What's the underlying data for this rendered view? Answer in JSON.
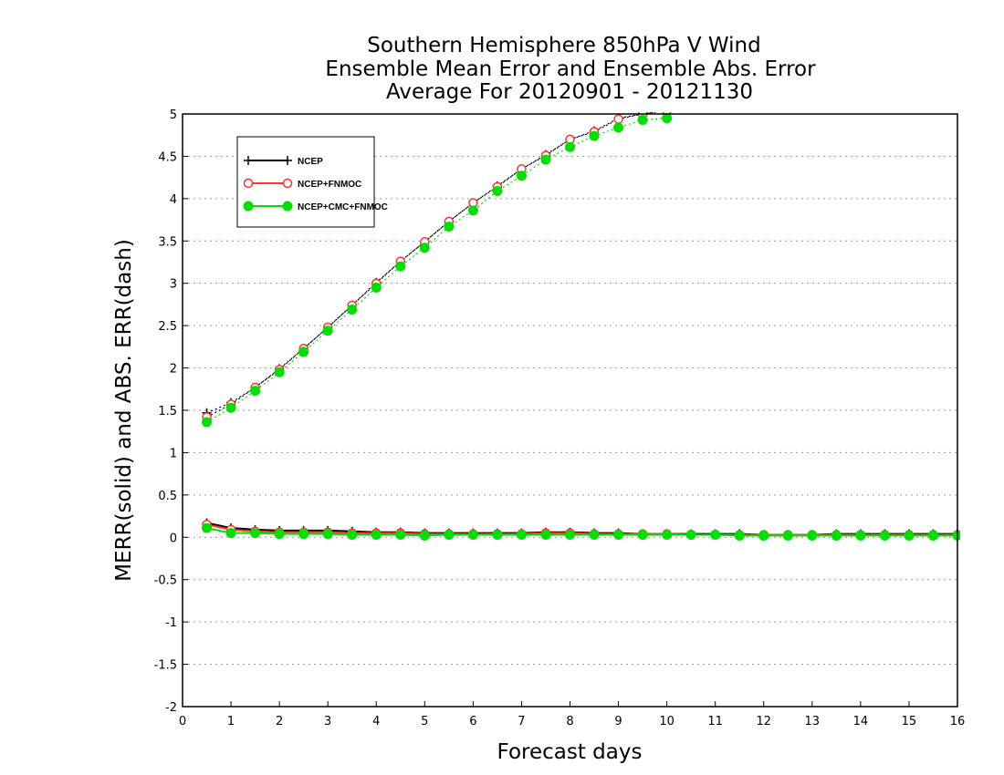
{
  "chart_data": {
    "type": "line",
    "title_lines": [
      "Southern Hemisphere 850hPa V Wind",
      "Ensemble Mean Error and Ensemble Abs. Error",
      "Average For 20120901 - 20121130"
    ],
    "xlabel": "Forecast days",
    "ylabel": "MERR(solid) and ABS. ERR(dash)",
    "xlim": [
      0,
      16
    ],
    "ylim": [
      -2,
      5
    ],
    "x_ticks": [
      "0",
      "1",
      "2",
      "3",
      "4",
      "5",
      "6",
      "7",
      "8",
      "9",
      "10",
      "11",
      "12",
      "13",
      "14",
      "15",
      "16"
    ],
    "y_ticks": [
      "-2",
      "-1.5",
      "-1",
      "-0.5",
      "0",
      "0.5",
      "1",
      "1.5",
      "2",
      "2.5",
      "3",
      "3.5",
      "4",
      "4.5",
      "5"
    ],
    "grid": "horizontal dotted",
    "legend_position": "top-left",
    "x": [
      0.5,
      1,
      1.5,
      2,
      2.5,
      3,
      3.5,
      4,
      4.5,
      5,
      5.5,
      6,
      6.5,
      7,
      7.5,
      8,
      8.5,
      9,
      9.5,
      10,
      10.5,
      11,
      11.5,
      12,
      12.5,
      13,
      13.5,
      14,
      14.5,
      15,
      15.5,
      16
    ],
    "series": [
      {
        "name": "NCEP",
        "color": "#000000",
        "marker": "plus",
        "mean_error": [
          0.17,
          0.11,
          0.09,
          0.08,
          0.08,
          0.08,
          0.07,
          0.06,
          0.06,
          0.05,
          0.05,
          0.05,
          0.05,
          0.05,
          0.06,
          0.06,
          0.05,
          0.05,
          0.04,
          0.04,
          0.04,
          0.04,
          0.04,
          0.03,
          0.03,
          0.03,
          0.04,
          0.04,
          0.04,
          0.04,
          0.04,
          0.04
        ],
        "abs_error": [
          1.47,
          1.59,
          1.77,
          1.99,
          2.23,
          2.48,
          2.74,
          3.01,
          3.26,
          3.49,
          3.73,
          3.95,
          4.15,
          4.35,
          4.52,
          4.7,
          4.8,
          4.95,
          5.0,
          5.05,
          null,
          null,
          null,
          null,
          null,
          null,
          null,
          null,
          null,
          null,
          null,
          null
        ]
      },
      {
        "name": "NCEP+FNMOC",
        "color": "#ff3333",
        "marker": "circle-open",
        "mean_error": [
          0.15,
          0.09,
          0.07,
          0.06,
          0.06,
          0.06,
          0.05,
          0.05,
          0.05,
          0.04,
          0.04,
          0.04,
          0.04,
          0.04,
          0.05,
          0.05,
          0.04,
          0.04,
          0.04,
          0.04,
          0.03,
          0.03,
          0.03,
          0.03,
          0.03,
          0.03,
          0.03,
          0.03,
          0.03,
          0.03,
          0.03,
          0.03
        ],
        "abs_error": [
          1.42,
          1.57,
          1.77,
          1.98,
          2.23,
          2.48,
          2.74,
          3.0,
          3.26,
          3.49,
          3.73,
          3.95,
          4.14,
          4.35,
          4.51,
          4.7,
          4.79,
          4.94,
          5.0,
          5.04,
          null,
          null,
          null,
          null,
          null,
          null,
          null,
          null,
          null,
          null,
          null,
          null
        ]
      },
      {
        "name": "NCEP+CMC+FNMOC",
        "color": "#00e000",
        "marker": "circle-filled",
        "mean_error": [
          0.11,
          0.05,
          0.05,
          0.04,
          0.04,
          0.04,
          0.03,
          0.03,
          0.03,
          0.02,
          0.03,
          0.03,
          0.03,
          0.03,
          0.03,
          0.03,
          0.03,
          0.03,
          0.03,
          0.03,
          0.03,
          0.03,
          0.02,
          0.02,
          0.02,
          0.02,
          0.02,
          0.02,
          0.02,
          0.02,
          0.02,
          0.02
        ],
        "abs_error": [
          1.36,
          1.53,
          1.73,
          1.95,
          2.19,
          2.44,
          2.69,
          2.95,
          3.2,
          3.42,
          3.67,
          3.86,
          4.09,
          4.27,
          4.46,
          4.61,
          4.74,
          4.84,
          4.93,
          4.95,
          null,
          null,
          null,
          null,
          null,
          null,
          null,
          null,
          null,
          null,
          null,
          null
        ]
      }
    ]
  }
}
